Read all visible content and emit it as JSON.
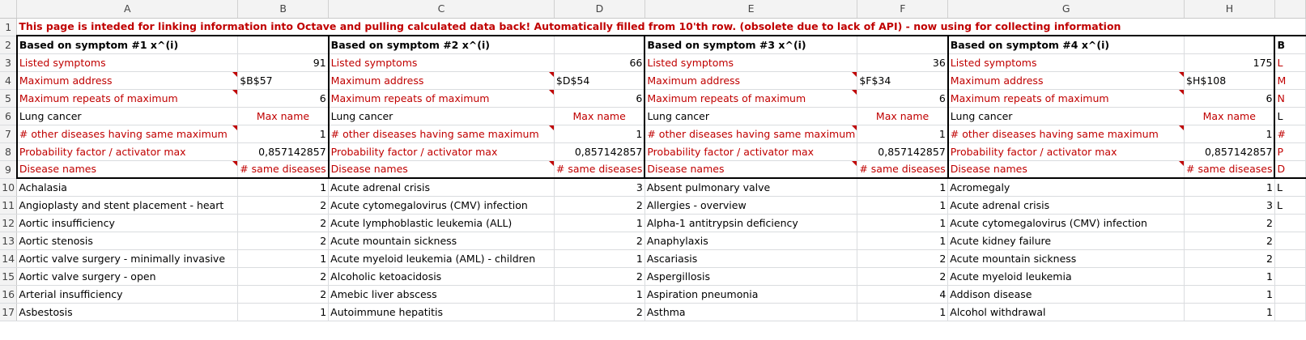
{
  "columns": [
    "A",
    "B",
    "C",
    "D",
    "E",
    "F",
    "G",
    "H",
    ""
  ],
  "banner": "This page is inteded for linking information into Octave and pulling calculated data back! Automatically filled from 10'th row. (obsolete due to lack of API) - now using for collecting information",
  "blocks": [
    {
      "title": "Based on symptom #1 x^(i)",
      "listed": "91",
      "max_address": "$B$57",
      "max_repeats": "6",
      "disease": "Lung cancer",
      "other": "1",
      "prob": "0,857142857"
    },
    {
      "title": "Based on symptom #2  x^(i)",
      "listed": "66",
      "max_address": "$D$54",
      "max_repeats": "6",
      "disease": "Lung cancer",
      "other": "1",
      "prob": "0,857142857"
    },
    {
      "title": "Based on symptom #3 x^(i)",
      "listed": "36",
      "max_address": "$F$34",
      "max_repeats": "6",
      "disease": "Lung cancer",
      "other": "1",
      "prob": "0,857142857"
    },
    {
      "title": "Based on symptom #4 x^(i)",
      "listed": "175",
      "max_address": "$H$108",
      "max_repeats": "6",
      "disease": "Lung cancer",
      "other": "1",
      "prob": "0,857142857"
    }
  ],
  "labels": {
    "listed": "Listed symptoms",
    "max_address": "Maximum address",
    "max_repeats": "Maximum repeats of maximum",
    "max_name": "Max name",
    "other": "# other diseases having same maximum",
    "prob": "Probability factor / activator max",
    "disease_names": "Disease names",
    "same_diseases": "# same diseases"
  },
  "peek": {
    "row2": "B",
    "row3": "L",
    "row4": "M",
    "row5": "N",
    "row6": "L",
    "row7": "#",
    "row8": "P",
    "row9": "D",
    "row10": "L",
    "row11": "L"
  },
  "rows": [
    {
      "num": "10",
      "c": [
        [
          "Achalasia",
          "1"
        ],
        [
          "Acute adrenal crisis",
          "3"
        ],
        [
          "Absent pulmonary valve",
          "1"
        ],
        [
          "Acromegaly",
          "1"
        ]
      ]
    },
    {
      "num": "11",
      "c": [
        [
          "Angioplasty and stent placement - heart",
          "2"
        ],
        [
          "Acute cytomegalovirus (CMV) infection",
          "2"
        ],
        [
          "Allergies - overview",
          "1"
        ],
        [
          "Acute adrenal crisis",
          "3"
        ]
      ]
    },
    {
      "num": "12",
      "c": [
        [
          "Aortic insufficiency",
          "2"
        ],
        [
          "Acute lymphoblastic leukemia (ALL)",
          "1"
        ],
        [
          "Alpha-1 antitrypsin deficiency",
          "1"
        ],
        [
          "Acute cytomegalovirus (CMV) infection",
          "2"
        ]
      ]
    },
    {
      "num": "13",
      "c": [
        [
          "Aortic stenosis",
          "2"
        ],
        [
          "Acute mountain sickness",
          "2"
        ],
        [
          "Anaphylaxis",
          "1"
        ],
        [
          "Acute kidney failure",
          "2"
        ]
      ]
    },
    {
      "num": "14",
      "c": [
        [
          "Aortic valve surgery - minimally invasive",
          "1"
        ],
        [
          "Acute myeloid leukemia (AML) - children",
          "1"
        ],
        [
          "Ascariasis",
          "2"
        ],
        [
          "Acute mountain sickness",
          "2"
        ]
      ]
    },
    {
      "num": "15",
      "c": [
        [
          "Aortic valve surgery - open",
          "2"
        ],
        [
          "Alcoholic ketoacidosis",
          "2"
        ],
        [
          "Aspergillosis",
          "2"
        ],
        [
          "Acute myeloid leukemia",
          "1"
        ]
      ]
    },
    {
      "num": "16",
      "c": [
        [
          "Arterial insufficiency",
          "2"
        ],
        [
          "Amebic liver abscess",
          "1"
        ],
        [
          "Aspiration pneumonia",
          "4"
        ],
        [
          "Addison disease",
          "1"
        ]
      ]
    },
    {
      "num": "17",
      "c": [
        [
          "Asbestosis",
          "1"
        ],
        [
          "Autoimmune hepatitis",
          "2"
        ],
        [
          "Asthma",
          "1"
        ],
        [
          "Alcohol withdrawal",
          "1"
        ]
      ]
    }
  ]
}
